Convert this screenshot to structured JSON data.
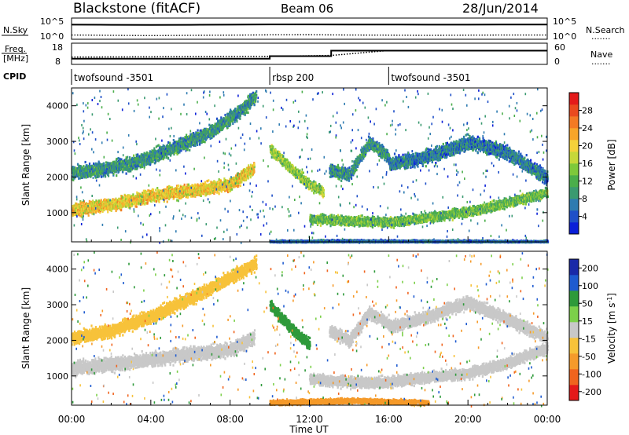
{
  "header": {
    "site_title": "Blackstone (fitACF)",
    "beam": "Beam 06",
    "date": "28/Jun/2014"
  },
  "side_labels": {
    "nsky": "N.Sky",
    "freq_line1": "Freq.",
    "freq_line2": "[MHz]",
    "cpid": "CPID",
    "nsearch": "N.Search",
    "nave": "Nave",
    "dotted": "......."
  },
  "chart_data": [
    {
      "type": "line",
      "panel": "noise",
      "y_tick_labels": [
        "10^5",
        "10^0"
      ],
      "right_tick_labels": [
        "10^5",
        "10^0"
      ],
      "series": [
        {
          "name": "N.Sky",
          "style": "solid",
          "x": [
            0,
            2,
            4,
            6,
            8,
            10,
            12,
            14,
            16,
            18,
            20,
            22,
            24
          ],
          "y": [
            10000,
            9000,
            8000,
            9000,
            10000,
            12000,
            12000,
            11000,
            11000,
            10000,
            10000,
            11000,
            11000
          ]
        },
        {
          "name": "N.Search",
          "style": "dotted",
          "x": [
            0,
            2,
            4,
            6,
            8,
            10,
            12,
            14,
            16,
            18,
            20,
            22,
            24
          ],
          "y": [
            10,
            8,
            7,
            8,
            9,
            11,
            12,
            10,
            9,
            8,
            9,
            10,
            10
          ]
        }
      ]
    },
    {
      "type": "line",
      "panel": "frequency-nave",
      "left_ticks": [
        "18",
        "8"
      ],
      "right_ticks": [
        "60",
        "0"
      ],
      "series": [
        {
          "name": "Freq.",
          "unit": "MHz",
          "style": "solid",
          "x": [
            0,
            10,
            10,
            13.1,
            13.1,
            16.0,
            16.0,
            24
          ],
          "y": [
            10.5,
            10.5,
            11.8,
            11.8,
            14.6,
            14.6,
            14.6,
            14.6
          ]
        },
        {
          "name": "Nave",
          "style": "dotted",
          "x": [
            0,
            10,
            13.1,
            16,
            24
          ],
          "y": [
            20,
            22,
            25,
            40,
            40
          ]
        }
      ]
    },
    {
      "type": "table",
      "panel": "cpid",
      "segments": [
        {
          "start": 0,
          "end": 10,
          "label": "twofsound -3501"
        },
        {
          "start": 10,
          "end": 16,
          "label": "rbsp 200"
        },
        {
          "start": 16,
          "end": 24,
          "label": "twofsound -3501"
        }
      ]
    },
    {
      "type": "heatmap",
      "panel": "power",
      "ylabel": "Slant Range [km]",
      "xlim": [
        0,
        24
      ],
      "ylim": [
        180,
        4500
      ],
      "y_ticks": [
        1000,
        2000,
        3000,
        4000
      ],
      "colorbar": {
        "label": "Power [dB]",
        "ticks": [
          4,
          8,
          12,
          16,
          20,
          24,
          28
        ],
        "range": [
          0,
          32
        ],
        "colors": [
          "#0a1ed8",
          "#1e4fc8",
          "#2e7bb0",
          "#3a9a70",
          "#4aae4a",
          "#7ec93a",
          "#c6d83a",
          "#f4d23a",
          "#f7a52a",
          "#f37a24",
          "#ea4a1e",
          "#e41a1a"
        ]
      },
      "bands": [
        {
          "pts": [
            [
              0,
              1100
            ],
            [
              2,
              1250
            ],
            [
              4,
              1500
            ],
            [
              6,
              1650
            ],
            [
              8,
              1800
            ],
            [
              9.2,
              2300
            ]
          ],
          "value": 20,
          "spread": 160
        },
        {
          "pts": [
            [
              0,
              2150
            ],
            [
              1.5,
              2250
            ],
            [
              3,
              2400
            ],
            [
              5,
              2800
            ],
            [
              7,
              3300
            ],
            [
              8.5,
              3900
            ],
            [
              9.3,
              4300
            ]
          ],
          "value": 9,
          "spread": 180
        },
        {
          "pts": [
            [
              10,
              2800
            ],
            [
              11,
              2300
            ],
            [
              12,
              1800
            ],
            [
              12.7,
              1600
            ]
          ],
          "value": 15,
          "spread": 130
        },
        {
          "pts": [
            [
              13,
              2200
            ],
            [
              14,
              2100
            ],
            [
              15,
              3000
            ],
            [
              16,
              2600
            ]
          ],
          "value": 9,
          "spread": 160
        },
        {
          "pts": [
            [
              12,
              850
            ],
            [
              14,
              800
            ],
            [
              16,
              750
            ],
            [
              18,
              900
            ],
            [
              20,
              1050
            ],
            [
              22,
              1300
            ],
            [
              24,
              1600
            ]
          ],
          "value": 13,
          "spread": 120
        },
        {
          "pts": [
            [
              16,
              2400
            ],
            [
              18,
              2600
            ],
            [
              20,
              3000
            ],
            [
              22,
              2700
            ],
            [
              24,
              2000
            ]
          ],
          "value": 7,
          "spread": 180
        },
        {
          "pts": [
            [
              10,
              200
            ],
            [
              14,
              220
            ],
            [
              18,
              210
            ],
            [
              24,
              200
            ]
          ],
          "value": 6,
          "spread": 40
        }
      ]
    },
    {
      "type": "heatmap",
      "panel": "velocity",
      "ylabel": "Slant Range [km]",
      "xlabel": "Time UT",
      "x_ticks": [
        "00:00",
        "04:00",
        "08:00",
        "12:00",
        "16:00",
        "20:00",
        "00:00"
      ],
      "xlim": [
        0,
        24
      ],
      "ylim": [
        180,
        4500
      ],
      "y_ticks": [
        1000,
        2000,
        3000,
        4000
      ],
      "colorbar": {
        "label": "Velocity [m s^-1]",
        "ticks": [
          200,
          100,
          50,
          15,
          -15,
          -50,
          -100,
          -200
        ],
        "colors": [
          "#1a2aa8",
          "#1e5bd0",
          "#2e9a3a",
          "#7cd04a",
          "#c8c8c8",
          "#f7c23a",
          "#f59a2a",
          "#f0641e",
          "#e41a1a"
        ]
      },
      "bands": [
        {
          "pts": [
            [
              0,
              1250
            ],
            [
              2,
              1350
            ],
            [
              4,
              1500
            ],
            [
              6,
              1650
            ],
            [
              8,
              1750
            ],
            [
              9.2,
              2100
            ]
          ],
          "value": 0,
          "spread": 180
        },
        {
          "pts": [
            [
              0,
              2100
            ],
            [
              2,
              2300
            ],
            [
              4,
              2700
            ],
            [
              6,
              3200
            ],
            [
              8,
              3800
            ],
            [
              9.3,
              4200
            ]
          ],
          "value": -40,
          "spread": 170
        },
        {
          "pts": [
            [
              10,
              3000
            ],
            [
              11,
              2400
            ],
            [
              12,
              1900
            ]
          ],
          "value": 60,
          "spread": 140
        },
        {
          "pts": [
            [
              13,
              2300
            ],
            [
              14,
              2000
            ],
            [
              15,
              2800
            ],
            [
              16,
              2500
            ]
          ],
          "value": 0,
          "spread": 160
        },
        {
          "pts": [
            [
              12,
              950
            ],
            [
              14,
              850
            ],
            [
              16,
              850
            ],
            [
              18,
              1000
            ],
            [
              20,
              1100
            ],
            [
              22,
              1400
            ],
            [
              24,
              1800
            ]
          ],
          "value": 0,
          "spread": 140
        },
        {
          "pts": [
            [
              16,
              2400
            ],
            [
              18,
              2700
            ],
            [
              20,
              3100
            ],
            [
              22,
              2600
            ],
            [
              24,
              2100
            ]
          ],
          "value": 0,
          "spread": 160
        },
        {
          "pts": [
            [
              10,
              280
            ],
            [
              14,
              330
            ],
            [
              18,
              280
            ]
          ],
          "value": -60,
          "spread": 60
        }
      ]
    }
  ]
}
